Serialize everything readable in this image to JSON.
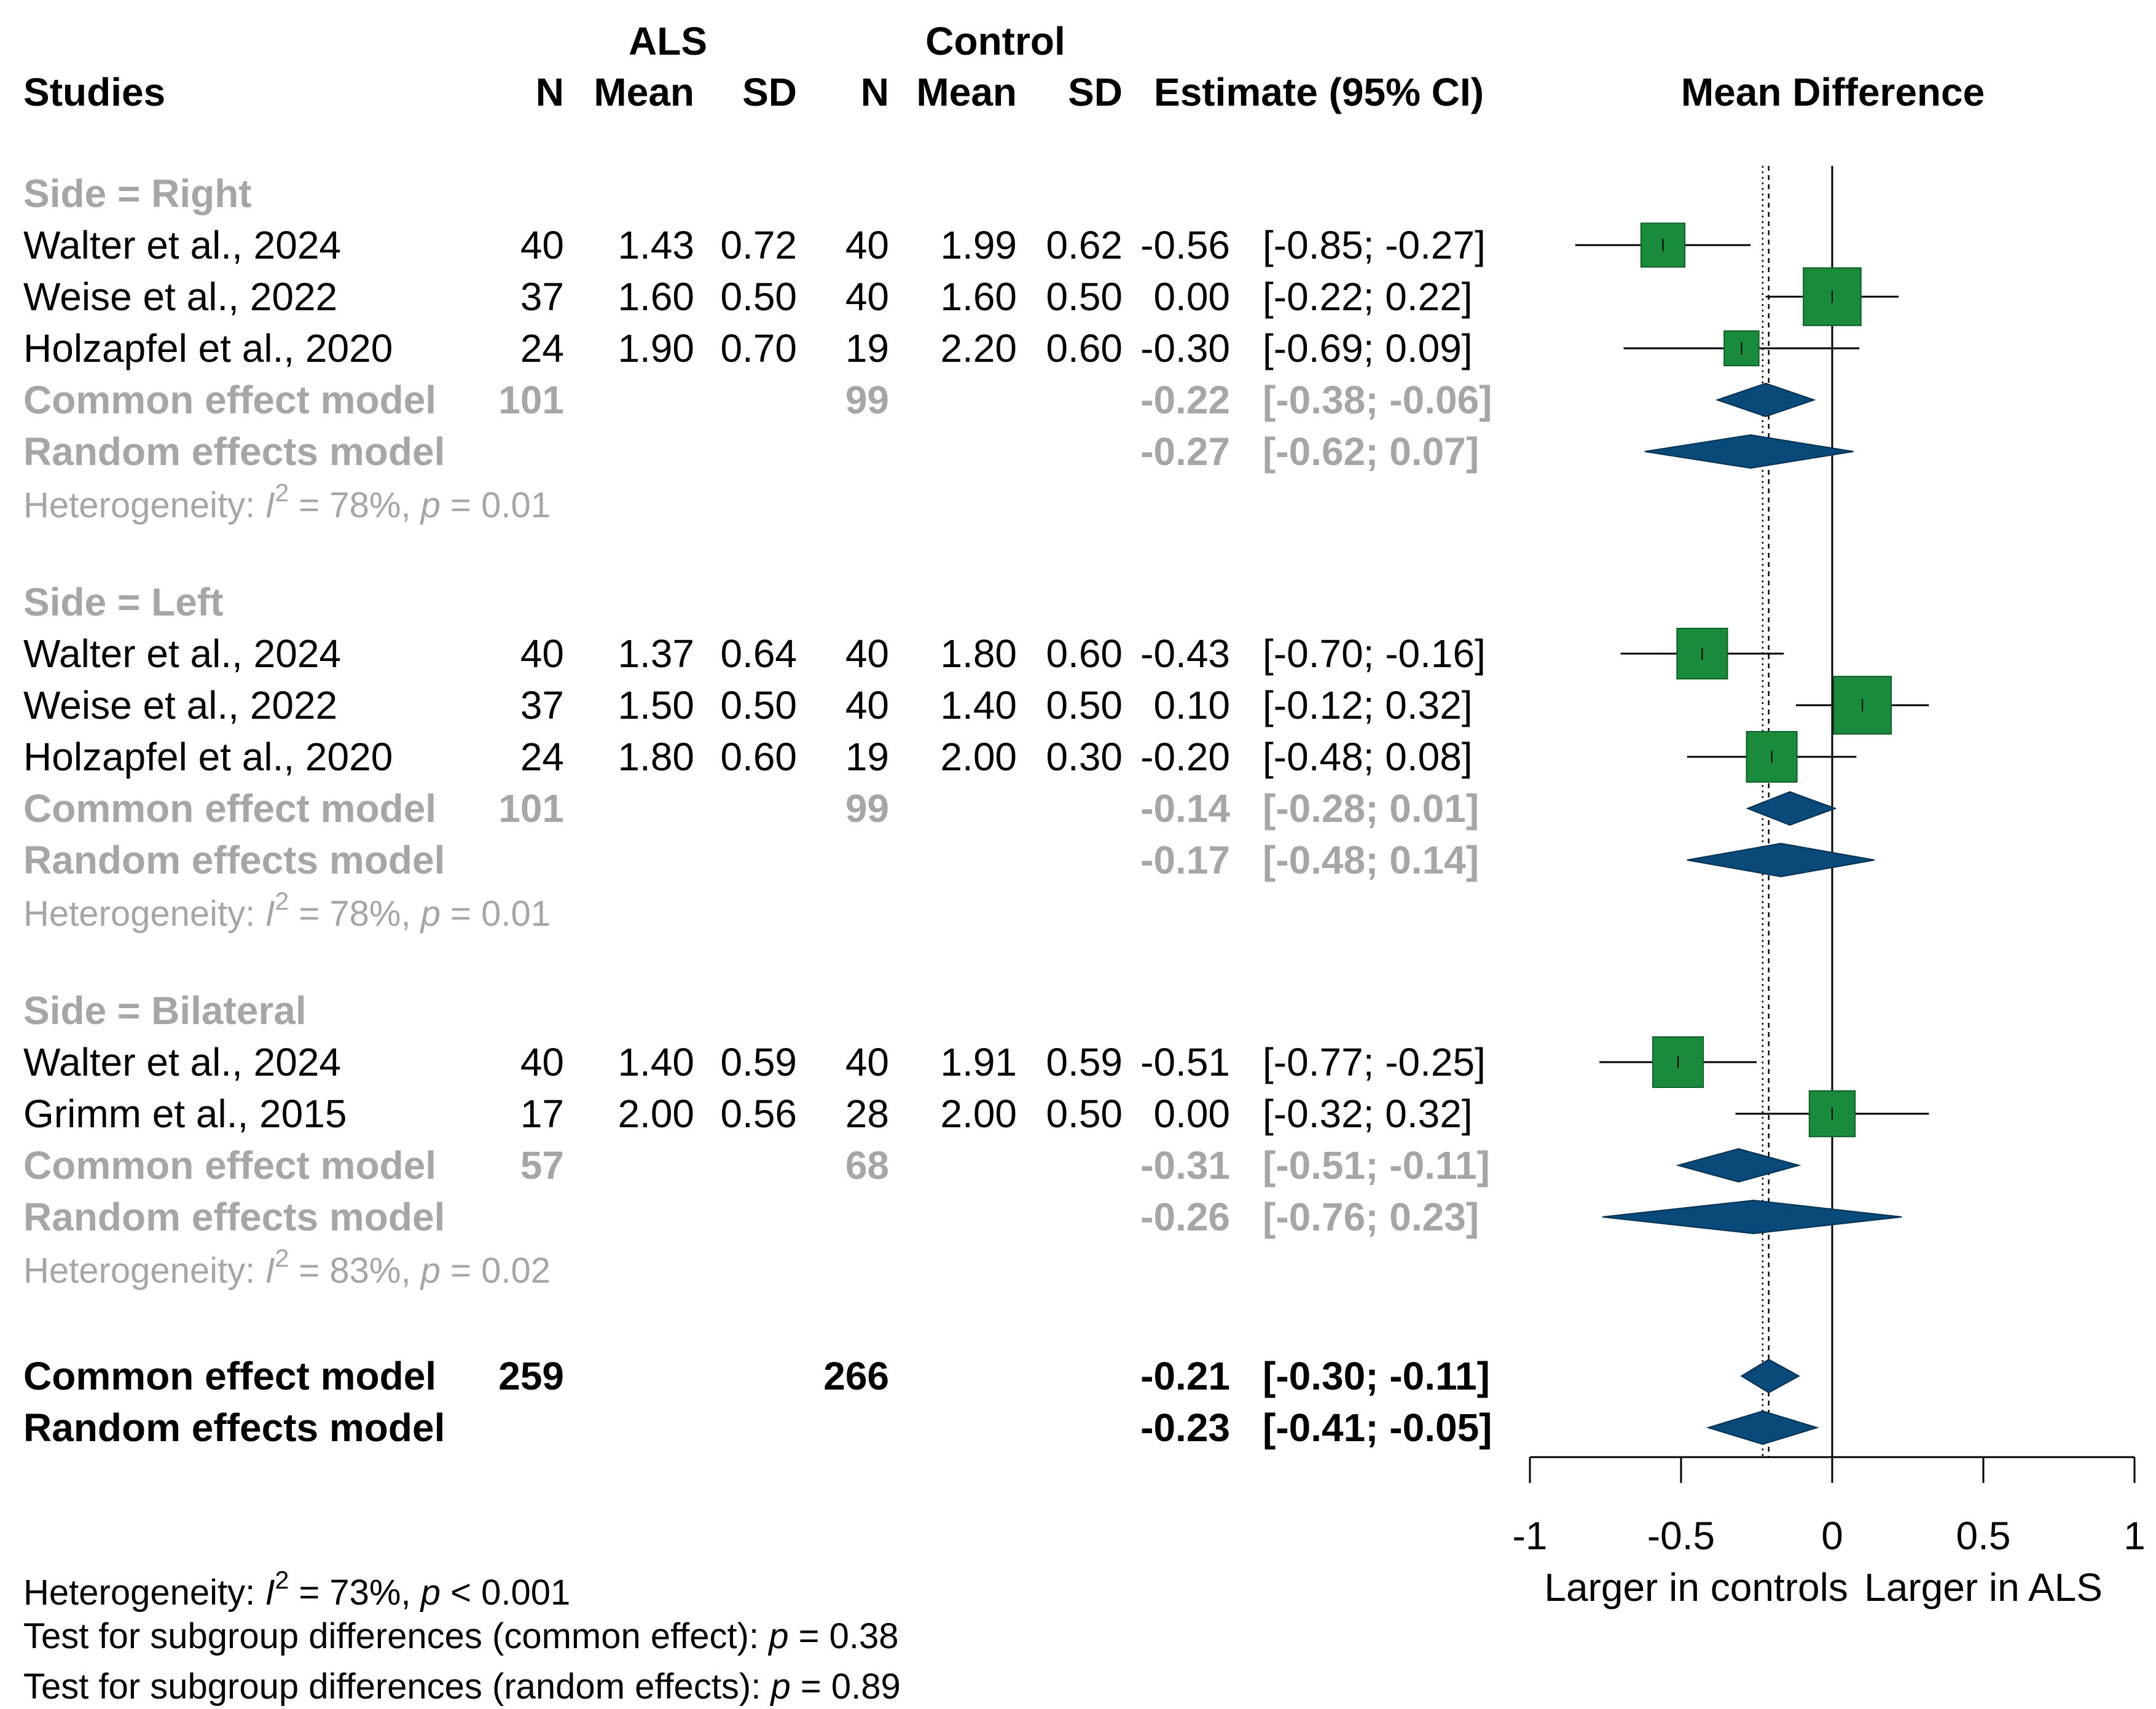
{
  "chart_data": {
    "type": "forest",
    "measure": "Mean Difference",
    "headers": {
      "studies": "Studies",
      "als": "ALS",
      "control": "Control",
      "n": "N",
      "mean": "Mean",
      "sd": "SD",
      "estimate": "Estimate (95% CI)",
      "plot_title": "Mean Difference"
    },
    "subgroups": [
      {
        "label": "Side = Right",
        "studies": [
          {
            "name": "Walter et al., 2024",
            "als_n": "40",
            "als_mean": "1.43",
            "als_sd": "0.72",
            "ctl_n": "40",
            "ctl_mean": "1.99",
            "ctl_sd": "0.62",
            "estimate": "-0.56",
            "ci": "[-0.85; -0.27]",
            "md": -0.56,
            "lo": -0.85,
            "hi": -0.27,
            "weight": 0.55
          },
          {
            "name": "Weise et al., 2022",
            "als_n": "37",
            "als_mean": "1.60",
            "als_sd": "0.50",
            "ctl_n": "40",
            "ctl_mean": "1.60",
            "ctl_sd": "0.50",
            "estimate": "0.00",
            "ci": "[-0.22;  0.22]",
            "md": 0.0,
            "lo": -0.22,
            "hi": 0.22,
            "weight": 0.9
          },
          {
            "name": "Holzapfel et al., 2020",
            "als_n": "24",
            "als_mean": "1.90",
            "als_sd": "0.70",
            "ctl_n": "19",
            "ctl_mean": "2.20",
            "ctl_sd": "0.60",
            "estimate": "-0.30",
            "ci": "[-0.69;  0.09]",
            "md": -0.3,
            "lo": -0.69,
            "hi": 0.09,
            "weight": 0.32
          }
        ],
        "common": {
          "label": "Common effect model",
          "als_n": "101",
          "ctl_n": "99",
          "estimate": "-0.22",
          "ci": "[-0.38; -0.06]",
          "md": -0.22,
          "lo": -0.38,
          "hi": -0.06
        },
        "random": {
          "label": "Random effects model",
          "estimate": "-0.27",
          "ci": "[-0.62;  0.07]",
          "md": -0.27,
          "lo": -0.62,
          "hi": 0.07
        },
        "het": {
          "prefix": "Heterogeneity: ",
          "i": "I",
          "sup": "2",
          "mid": " = 78%, ",
          "p": "p",
          "end": " = 0.01"
        }
      },
      {
        "label": "Side = Left",
        "studies": [
          {
            "name": "Walter et al., 2024",
            "als_n": "40",
            "als_mean": "1.37",
            "als_sd": "0.64",
            "ctl_n": "40",
            "ctl_mean": "1.80",
            "ctl_sd": "0.60",
            "estimate": "-0.43",
            "ci": "[-0.70; -0.16]",
            "md": -0.43,
            "lo": -0.7,
            "hi": -0.16,
            "weight": 0.72
          },
          {
            "name": "Weise et al., 2022",
            "als_n": "37",
            "als_mean": "1.50",
            "als_sd": "0.50",
            "ctl_n": "40",
            "ctl_mean": "1.40",
            "ctl_sd": "0.50",
            "estimate": "0.10",
            "ci": "[-0.12;  0.32]",
            "md": 0.1,
            "lo": -0.12,
            "hi": 0.32,
            "weight": 0.9
          },
          {
            "name": "Holzapfel et al., 2020",
            "als_n": "24",
            "als_mean": "1.80",
            "als_sd": "0.60",
            "ctl_n": "19",
            "ctl_mean": "2.00",
            "ctl_sd": "0.30",
            "estimate": "-0.20",
            "ci": "[-0.48;  0.08]",
            "md": -0.2,
            "lo": -0.48,
            "hi": 0.08,
            "weight": 0.72
          }
        ],
        "common": {
          "label": "Common effect model",
          "als_n": "101",
          "ctl_n": "99",
          "estimate": "-0.14",
          "ci": "[-0.28;  0.01]",
          "md": -0.14,
          "lo": -0.28,
          "hi": 0.01
        },
        "random": {
          "label": "Random effects model",
          "estimate": "-0.17",
          "ci": "[-0.48;  0.14]",
          "md": -0.17,
          "lo": -0.48,
          "hi": 0.14
        },
        "het": {
          "prefix": "Heterogeneity: ",
          "i": "I",
          "sup": "2",
          "mid": " = 78%, ",
          "p": "p",
          "end": " = 0.01"
        }
      },
      {
        "label": "Side = Bilateral",
        "studies": [
          {
            "name": "Walter et al., 2024",
            "als_n": "40",
            "als_mean": "1.40",
            "als_sd": "0.59",
            "ctl_n": "40",
            "ctl_mean": "1.91",
            "ctl_sd": "0.59",
            "estimate": "-0.51",
            "ci": "[-0.77; -0.25]",
            "md": -0.51,
            "lo": -0.77,
            "hi": -0.25,
            "weight": 0.72
          },
          {
            "name": "Grimm et al., 2015",
            "als_n": "17",
            "als_mean": "2.00",
            "als_sd": "0.56",
            "ctl_n": "28",
            "ctl_mean": "2.00",
            "ctl_sd": "0.50",
            "estimate": "0.00",
            "ci": "[-0.32;  0.32]",
            "md": 0.0,
            "lo": -0.32,
            "hi": 0.32,
            "weight": 0.6
          }
        ],
        "common": {
          "label": "Common effect model",
          "als_n": "57",
          "ctl_n": "68",
          "estimate": "-0.31",
          "ci": "[-0.51; -0.11]",
          "md": -0.31,
          "lo": -0.51,
          "hi": -0.11
        },
        "random": {
          "label": "Random effects model",
          "estimate": "-0.26",
          "ci": "[-0.76;  0.23]",
          "md": -0.26,
          "lo": -0.76,
          "hi": 0.23
        },
        "het": {
          "prefix": "Heterogeneity: ",
          "i": "I",
          "sup": "2",
          "mid": " = 83%, ",
          "p": "p",
          "end": " = 0.02"
        }
      }
    ],
    "overall": {
      "common": {
        "label": "Common effect model",
        "als_n": "259",
        "ctl_n": "266",
        "estimate": "-0.21",
        "ci": "[-0.30; -0.11]",
        "md": -0.21,
        "lo": -0.3,
        "hi": -0.11
      },
      "random": {
        "label": "Random effects model",
        "estimate": "-0.23",
        "ci": "[-0.41; -0.05]",
        "md": -0.23,
        "lo": -0.41,
        "hi": -0.05
      }
    },
    "reference_lines": {
      "null": 0,
      "common": -0.21,
      "random": -0.23
    },
    "axis": {
      "xlim": [
        -1,
        1
      ],
      "ticks": [
        -1,
        -0.5,
        0,
        0.5,
        1
      ],
      "tick_labels": [
        "-1",
        "-0.5",
        "0",
        "0.5",
        "1"
      ],
      "label_left": "Larger in controls",
      "label_right": "Larger in ALS"
    },
    "footer": {
      "het": {
        "prefix": "Heterogeneity: ",
        "i": "I",
        "sup": "2",
        "mid": " = 73%, ",
        "p": "p",
        "end": " < 0.001"
      },
      "test_common": {
        "label": "Test for subgroup differences (common effect):  ",
        "p": "p",
        "end": " = 0.38"
      },
      "test_random": {
        "label": "Test for subgroup differences (random effects):  ",
        "p": "p",
        "end": " = 0.89"
      }
    },
    "colors": {
      "square": "#1a8a3c",
      "diamond": "#0a4a7a",
      "grey": "#a6a6a6",
      "text": "#000000"
    }
  }
}
